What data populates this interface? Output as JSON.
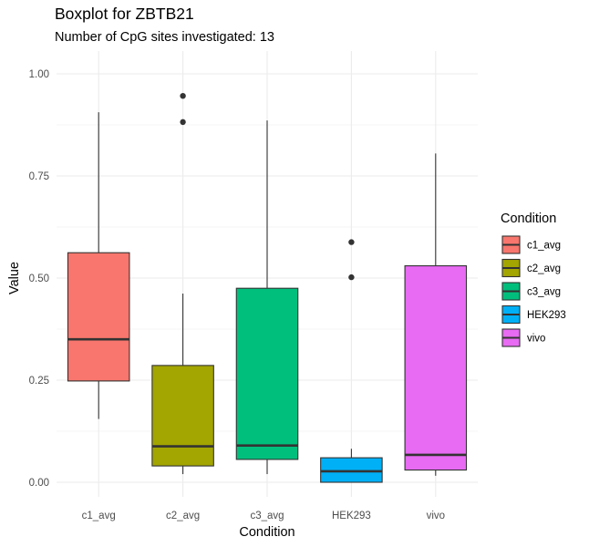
{
  "chart_data": {
    "type": "boxplot",
    "title": "Boxplot for ZBTB21",
    "subtitle": "Number of CpG sites investigated: 13",
    "xlabel": "Condition",
    "ylabel": "Value",
    "ylim": [
      -0.03,
      1.03
    ],
    "yticks": [
      0.0,
      0.25,
      0.5,
      0.75,
      1.0
    ],
    "ytick_labels": [
      "0.00",
      "0.25",
      "0.50",
      "0.75",
      "1.00"
    ],
    "categories": [
      "c1_avg",
      "c2_avg",
      "c3_avg",
      "HEK293",
      "vivo"
    ],
    "legend": {
      "title": "Condition",
      "position": "right"
    },
    "grid": true,
    "series": [
      {
        "name": "c1_avg",
        "color": "#F8766D",
        "whisker_low": 0.155,
        "q1": 0.248,
        "median": 0.35,
        "q3": 0.562,
        "whisker_high": 0.906,
        "outliers": []
      },
      {
        "name": "c2_avg",
        "color": "#A3A500",
        "whisker_low": 0.02,
        "q1": 0.04,
        "median": 0.088,
        "q3": 0.286,
        "whisker_high": 0.462,
        "outliers": [
          0.946,
          0.882
        ]
      },
      {
        "name": "c3_avg",
        "color": "#00BF7D",
        "whisker_low": 0.02,
        "q1": 0.056,
        "median": 0.09,
        "q3": 0.475,
        "whisker_high": 0.886,
        "outliers": []
      },
      {
        "name": "HEK293",
        "color": "#00B0F6",
        "whisker_low": 0.0,
        "q1": 0.0,
        "median": 0.027,
        "q3": 0.06,
        "whisker_high": 0.082,
        "outliers": [
          0.588,
          0.502
        ]
      },
      {
        "name": "vivo",
        "color": "#E76BF3",
        "whisker_low": 0.016,
        "q1": 0.03,
        "median": 0.067,
        "q3": 0.53,
        "whisker_high": 0.805,
        "outliers": []
      }
    ]
  }
}
